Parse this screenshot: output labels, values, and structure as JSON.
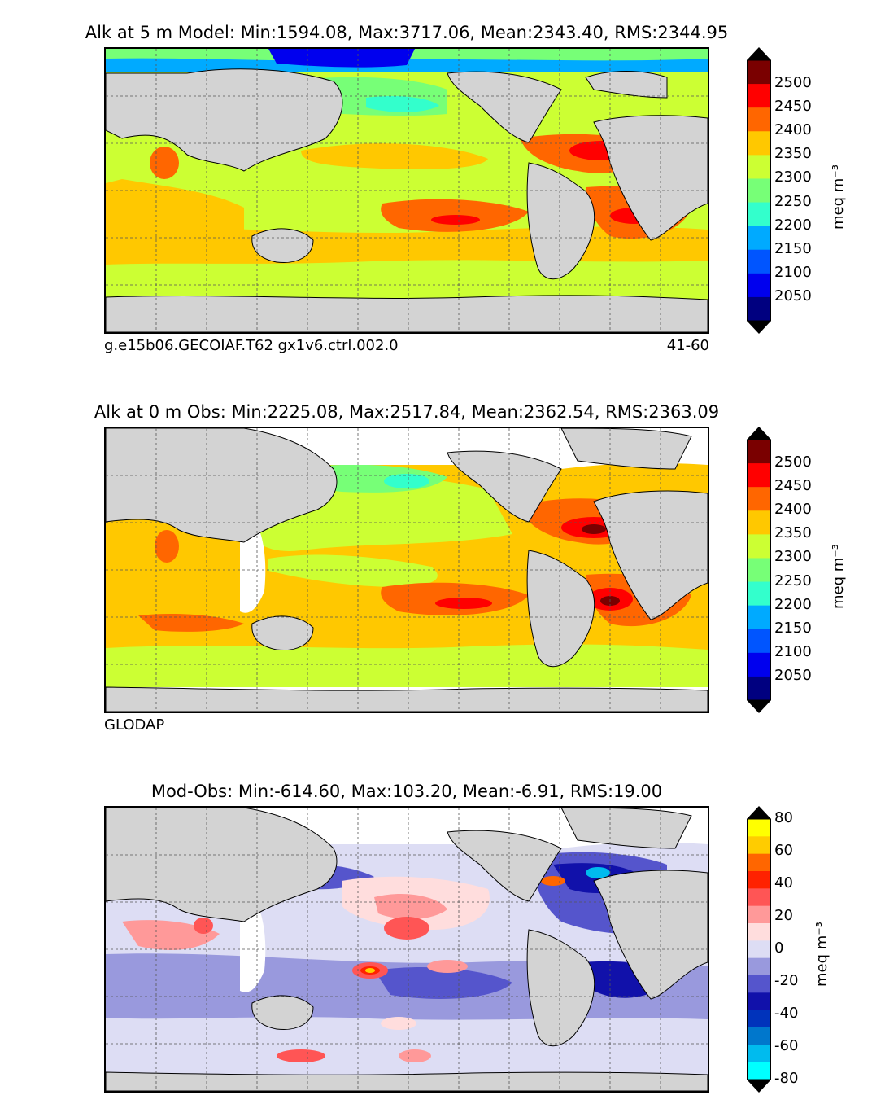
{
  "panels": [
    {
      "title": "Alk at 5 m Model: Min:1594.08, Max:3717.06, Mean:2343.40, RMS:2344.95",
      "footer_left": "g.e15b06.GECOIAF.T62 gx1v6.ctrl.002.0",
      "footer_right": "41-60",
      "unit": "meq m⁻³",
      "colorbar_ticks": [
        "2500",
        "2450",
        "2400",
        "2350",
        "2300",
        "2250",
        "2200",
        "2150",
        "2100",
        "2050"
      ],
      "colorbar_colors": [
        "#7a0000",
        "#ff0000",
        "#ff6600",
        "#ffc800",
        "#ccff33",
        "#77ff77",
        "#33ffcc",
        "#00aaff",
        "#0055ff",
        "#0000ee",
        "#000080"
      ]
    },
    {
      "title": "Alk at 0 m Obs: Min:2225.08, Max:2517.84, Mean:2362.54, RMS:2363.09",
      "footer_left": "GLODAP",
      "footer_right": "",
      "unit": "meq m⁻³",
      "colorbar_ticks": [
        "2500",
        "2450",
        "2400",
        "2350",
        "2300",
        "2250",
        "2200",
        "2150",
        "2100",
        "2050"
      ],
      "colorbar_colors": [
        "#7a0000",
        "#ff0000",
        "#ff6600",
        "#ffc800",
        "#ccff33",
        "#77ff77",
        "#33ffcc",
        "#00aaff",
        "#0055ff",
        "#0000ee",
        "#000080"
      ]
    },
    {
      "title": "Mod-Obs: Min:-614.60, Max:103.20, Mean:-6.91, RMS:19.00",
      "footer_left": "",
      "footer_right": "",
      "unit": "meq m⁻³",
      "colorbar_ticks": [
        "80",
        "60",
        "40",
        "20",
        "0",
        "-20",
        "-40",
        "-60",
        "-80"
      ],
      "colorbar_colors": [
        "#ffff00",
        "#ffcc00",
        "#ff6600",
        "#ff2200",
        "#ff5555",
        "#ff9999",
        "#ffdddd",
        "#ddddf4",
        "#9999dd",
        "#5555cc",
        "#1111aa",
        "#0033bb",
        "#0077cc",
        "#00bbee",
        "#00ffff"
      ]
    }
  ],
  "chart_data": [
    {
      "type": "heatmap",
      "title": "Alk at 5 m Model: Min:1594.08, Max:3717.06, Mean:2343.40, RMS:2344.95",
      "colorbar_label": "meq m⁻³",
      "colorbar_ticks": [
        2050,
        2100,
        2150,
        2200,
        2250,
        2300,
        2350,
        2400,
        2450,
        2500
      ],
      "colorbar_extend": "both",
      "stats": {
        "min": 1594.08,
        "max": 3717.06,
        "mean": 2343.4,
        "rms": 2344.95
      }
    },
    {
      "type": "heatmap",
      "title": "Alk at 0 m Obs: Min:2225.08, Max:2517.84, Mean:2362.54, RMS:2363.09",
      "colorbar_label": "meq m⁻³",
      "colorbar_ticks": [
        2050,
        2100,
        2150,
        2200,
        2250,
        2300,
        2350,
        2400,
        2450,
        2500
      ],
      "colorbar_extend": "both",
      "stats": {
        "min": 2225.08,
        "max": 2517.84,
        "mean": 2362.54,
        "rms": 2363.09
      }
    },
    {
      "type": "heatmap",
      "title": "Mod-Obs: Min:-614.60, Max:103.20, Mean:-6.91, RMS:19.00",
      "colorbar_label": "meq m⁻³",
      "colorbar_ticks": [
        -80,
        -60,
        -40,
        -20,
        0,
        20,
        40,
        60,
        80
      ],
      "colorbar_extend": "both",
      "stats": {
        "min": -614.6,
        "max": 103.2,
        "mean": -6.91,
        "rms": 19.0
      }
    }
  ]
}
